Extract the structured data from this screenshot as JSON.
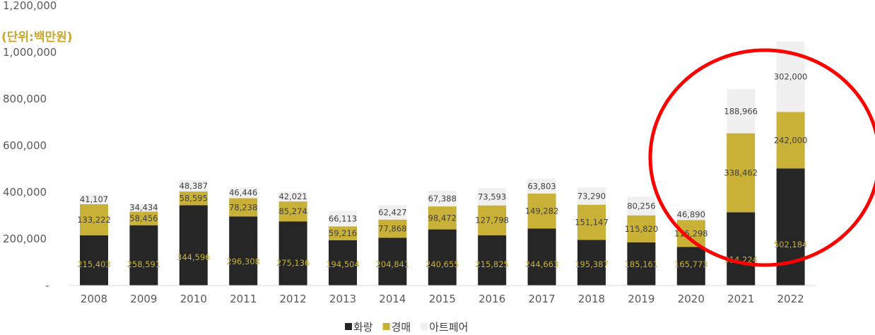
{
  "chart_data": {
    "type": "bar",
    "stacked": true,
    "unit_label": "(단위:백만원)",
    "categories": [
      "2008",
      "2009",
      "2010",
      "2011",
      "2012",
      "2013",
      "2014",
      "2015",
      "2016",
      "2017",
      "2018",
      "2019",
      "2020",
      "2021",
      "2022"
    ],
    "series": [
      {
        "name": "화랑",
        "color": "#262626",
        "label_color": "#C9B037",
        "values": [
          215403,
          258591,
          344596,
          296308,
          275136,
          194504,
          204841,
          240655,
          215825,
          244663,
          195387,
          185161,
          165773,
          314224,
          502184
        ]
      },
      {
        "name": "경매",
        "color": "#C9B037",
        "label_color": "#404040",
        "values": [
          133222,
          58456,
          58595,
          78238,
          85274,
          59216,
          77868,
          98472,
          127798,
          149282,
          151147,
          115820,
          115298,
          338462,
          242000
        ]
      },
      {
        "name": "아트페어",
        "color": "#F0F0F0",
        "label_color": "#404040",
        "values": [
          41107,
          34434,
          48387,
          46446,
          42021,
          66113,
          62427,
          67388,
          73593,
          63803,
          73290,
          80256,
          46890,
          188966,
          302000
        ]
      }
    ],
    "yticks": [
      0,
      200000,
      400000,
      600000,
      800000,
      1000000,
      1200000
    ],
    "ytick_labels": [
      "-",
      "200,000",
      "400,000",
      "600,000",
      "800,000",
      "1,000,000",
      "1,200,000"
    ],
    "ylim": [
      0,
      1200000
    ],
    "grid": false,
    "legend_position": "bottom",
    "annotation": {
      "shape": "red circle",
      "highlights": [
        "2021",
        "2022"
      ],
      "color": "#FF0000"
    }
  }
}
